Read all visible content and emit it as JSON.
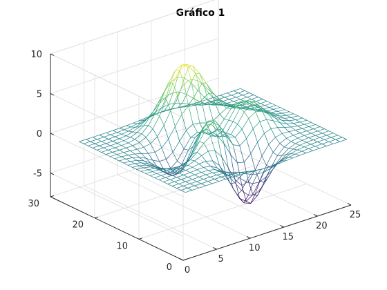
{
  "chart_data": {
    "type": "surface-mesh",
    "title": "Gráfico 1",
    "function": "peaks",
    "grid_size": [
      25,
      25
    ],
    "xlim": [
      0,
      25
    ],
    "ylim": [
      0,
      30
    ],
    "zlim": [
      -8,
      10
    ],
    "x_ticks": [
      0,
      5,
      10,
      15,
      20,
      25
    ],
    "y_ticks": [
      0,
      10,
      20,
      30
    ],
    "z_ticks": [
      -5,
      0,
      5,
      10
    ],
    "x_tick_labels": [
      "0",
      "5",
      "10",
      "15",
      "20",
      "25"
    ],
    "y_tick_labels": [
      "0",
      "10",
      "20",
      "30"
    ],
    "z_tick_labels": [
      "-5",
      "0",
      "5",
      "10"
    ],
    "grid": true,
    "colormap": [
      "#440154",
      "#3b528b",
      "#21918c",
      "#5ec962",
      "#fde725"
    ],
    "z_range": [
      -6.55,
      8.1
    ]
  }
}
